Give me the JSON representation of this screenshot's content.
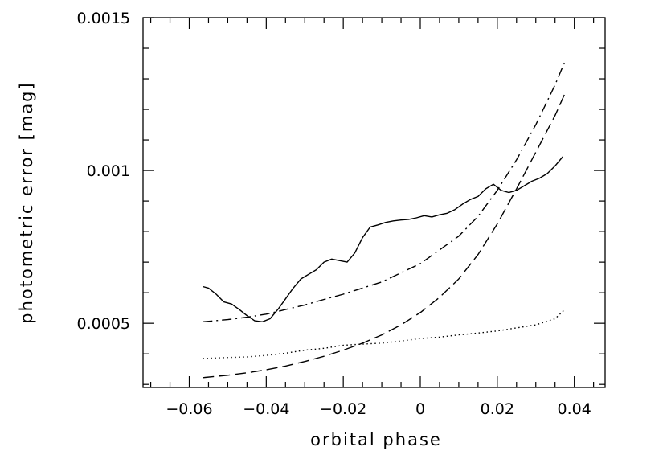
{
  "chart_data": {
    "type": "line",
    "title": "",
    "xlabel": "orbital phase",
    "ylabel": "photometric error  [mag]",
    "xlim": [
      -0.072,
      0.048
    ],
    "ylim": [
      0.00029,
      0.0015
    ],
    "x_ticks": [
      -0.06,
      -0.04,
      -0.02,
      0,
      0.02,
      0.04
    ],
    "x_tick_labels": [
      "−0.06",
      "−0.04",
      "−0.02",
      "0",
      "0.02",
      "0.04"
    ],
    "y_ticks": [
      0.0005,
      0.001,
      0.0015
    ],
    "y_tick_labels": [
      "0.0005",
      "0.001",
      "0.0015"
    ],
    "grid": false,
    "series": [
      {
        "style": "solid",
        "x": [
          -0.0565,
          -0.055,
          -0.053,
          -0.051,
          -0.049,
          -0.047,
          -0.045,
          -0.043,
          -0.041,
          -0.039,
          -0.037,
          -0.035,
          -0.033,
          -0.031,
          -0.029,
          -0.027,
          -0.025,
          -0.023,
          -0.021,
          -0.019,
          -0.017,
          -0.015,
          -0.013,
          -0.011,
          -0.009,
          -0.007,
          -0.005,
          -0.003,
          -0.001,
          0.001,
          0.003,
          0.005,
          0.007,
          0.009,
          0.011,
          0.013,
          0.015,
          0.017,
          0.019,
          0.021,
          0.023,
          0.025,
          0.027,
          0.029,
          0.031,
          0.033,
          0.035,
          0.037
        ],
        "values": [
          0.00062,
          0.000615,
          0.000595,
          0.00057,
          0.000563,
          0.000545,
          0.000525,
          0.000508,
          0.000505,
          0.000515,
          0.000545,
          0.00058,
          0.000615,
          0.000645,
          0.00066,
          0.000675,
          0.0007,
          0.00071,
          0.000705,
          0.0007,
          0.00073,
          0.00078,
          0.000815,
          0.000822,
          0.00083,
          0.000835,
          0.000838,
          0.00084,
          0.000845,
          0.000852,
          0.000848,
          0.000855,
          0.00086,
          0.000872,
          0.00089,
          0.000905,
          0.000915,
          0.00094,
          0.000955,
          0.000935,
          0.000928,
          0.000935,
          0.00095,
          0.000965,
          0.000975,
          0.00099,
          0.001015,
          0.001045
        ]
      },
      {
        "style": "dot-dash",
        "x": [
          -0.0565,
          -0.05,
          -0.045,
          -0.04,
          -0.035,
          -0.03,
          -0.025,
          -0.02,
          -0.015,
          -0.01,
          -0.005,
          0,
          0.005,
          0.01,
          0.015,
          0.02,
          0.025,
          0.03,
          0.035,
          0.0375
        ],
        "values": [
          0.000505,
          0.000512,
          0.00052,
          0.00053,
          0.000545,
          0.00056,
          0.000578,
          0.000595,
          0.000615,
          0.000635,
          0.000665,
          0.000695,
          0.00074,
          0.000785,
          0.00085,
          0.000935,
          0.001035,
          0.00115,
          0.00128,
          0.001355
        ]
      },
      {
        "style": "dashed",
        "x": [
          -0.0565,
          -0.05,
          -0.045,
          -0.04,
          -0.035,
          -0.03,
          -0.025,
          -0.02,
          -0.015,
          -0.01,
          -0.005,
          0,
          0.005,
          0.01,
          0.015,
          0.02,
          0.025,
          0.03,
          0.035,
          0.0375
        ],
        "values": [
          0.000322,
          0.00033,
          0.000338,
          0.000348,
          0.00036,
          0.000375,
          0.000392,
          0.000412,
          0.000435,
          0.000462,
          0.000495,
          0.000535,
          0.000585,
          0.000645,
          0.000725,
          0.000825,
          0.00094,
          0.00106,
          0.00118,
          0.00125
        ]
      },
      {
        "style": "dotted",
        "x": [
          -0.0565,
          -0.05,
          -0.045,
          -0.04,
          -0.035,
          -0.03,
          -0.025,
          -0.02,
          -0.015,
          -0.01,
          -0.005,
          0,
          0.005,
          0.01,
          0.015,
          0.02,
          0.025,
          0.03,
          0.035,
          0.0375
        ],
        "values": [
          0.000385,
          0.000388,
          0.00039,
          0.000395,
          0.000402,
          0.000412,
          0.000418,
          0.000428,
          0.000432,
          0.000435,
          0.000442,
          0.00045,
          0.000455,
          0.000462,
          0.000468,
          0.000475,
          0.000485,
          0.000495,
          0.000515,
          0.000545
        ]
      }
    ]
  }
}
